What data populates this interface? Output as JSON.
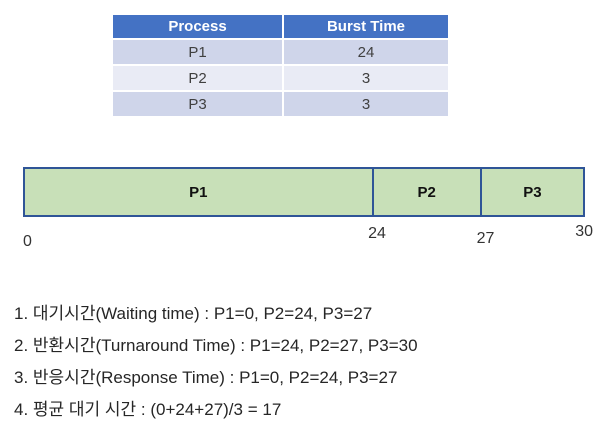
{
  "table": {
    "headers": [
      "Process",
      "Burst Time"
    ],
    "rows": [
      {
        "process": "P1",
        "burst": "24"
      },
      {
        "process": "P2",
        "burst": "3"
      },
      {
        "process": "P3",
        "burst": "3"
      }
    ]
  },
  "chart_data": {
    "type": "bar",
    "subtype": "gantt",
    "segments": [
      {
        "label": "P1",
        "start": 0,
        "end": 24
      },
      {
        "label": "P2",
        "start": 24,
        "end": 27
      },
      {
        "label": "P3",
        "start": 27,
        "end": 30
      }
    ],
    "ticks": [
      "0",
      "24",
      "27",
      "30"
    ],
    "xlim": [
      0,
      30
    ]
  },
  "notes": [
    "1. 대기시간(Waiting time) : P1=0, P2=24, P3=27",
    "2. 반환시간(Turnaround Time) : P1=24, P2=27, P3=30",
    "3. 반응시간(Response Time) : P1=0, P2=24, P3=27",
    "4. 평균 대기 시간 : (0+24+27)/3 = 17"
  ],
  "colors": {
    "table_header": "#4472C4",
    "table_band_dark": "#CFD5EA",
    "table_band_light": "#E9EBF5",
    "gantt_fill": "#C8E0B8",
    "gantt_border": "#2F5597",
    "text": "#262626"
  }
}
